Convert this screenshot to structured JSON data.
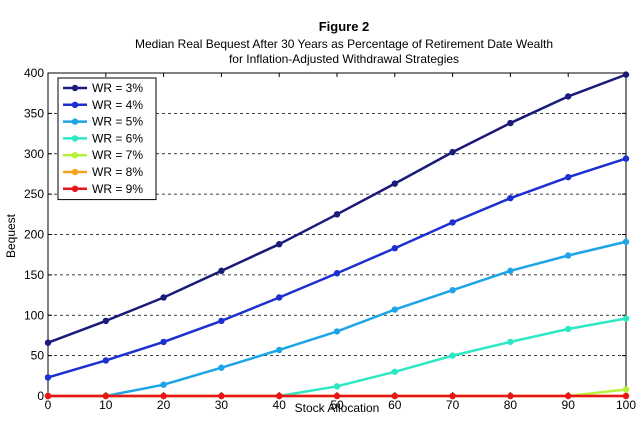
{
  "chart_data": {
    "type": "line",
    "title": "Figure 2",
    "subtitle_lines": [
      "Median Real Bequest After 30 Years as Percentage of Retirement Date Wealth",
      "for Inflation-Adjusted Withdrawal Strategies"
    ],
    "xlabel": "Stock Allocation",
    "ylabel": "Bequest",
    "xlim": [
      0,
      100
    ],
    "ylim": [
      0,
      400
    ],
    "x_ticks": [
      0,
      10,
      20,
      30,
      40,
      50,
      60,
      70,
      80,
      90,
      100
    ],
    "y_ticks": [
      0,
      50,
      100,
      150,
      200,
      250,
      300,
      350,
      400
    ],
    "grid": "horizontal dashed",
    "legend_position": "top-left",
    "x": [
      0,
      10,
      20,
      30,
      40,
      50,
      60,
      70,
      80,
      90,
      100
    ],
    "series": [
      {
        "name": "WR = 3%",
        "color": "#1a1a7a",
        "values": [
          66,
          93,
          122,
          155,
          188,
          225,
          263,
          302,
          338,
          371,
          398
        ]
      },
      {
        "name": "WR = 4%",
        "color": "#1c2fd0",
        "values": [
          23,
          44,
          67,
          93,
          122,
          152,
          183,
          215,
          245,
          271,
          294
        ]
      },
      {
        "name": "WR = 5%",
        "color": "#1ea5e8",
        "values": [
          0,
          0,
          14,
          35,
          57,
          80,
          107,
          131,
          155,
          174,
          191
        ]
      },
      {
        "name": "WR = 6%",
        "color": "#2ee8c4",
        "values": [
          0,
          0,
          0,
          0,
          0,
          12,
          30,
          50,
          67,
          83,
          96
        ]
      },
      {
        "name": "WR = 7%",
        "color": "#b6f23c",
        "values": [
          0,
          0,
          0,
          0,
          0,
          0,
          0,
          0,
          0,
          0,
          8
        ]
      },
      {
        "name": "WR = 8%",
        "color": "#f5a21e",
        "values": [
          0,
          0,
          0,
          0,
          0,
          0,
          0,
          0,
          0,
          0,
          0
        ]
      },
      {
        "name": "WR = 9%",
        "color": "#e8161a",
        "values": [
          0,
          0,
          0,
          0,
          0,
          0,
          0,
          0,
          0,
          0,
          0
        ]
      }
    ]
  }
}
